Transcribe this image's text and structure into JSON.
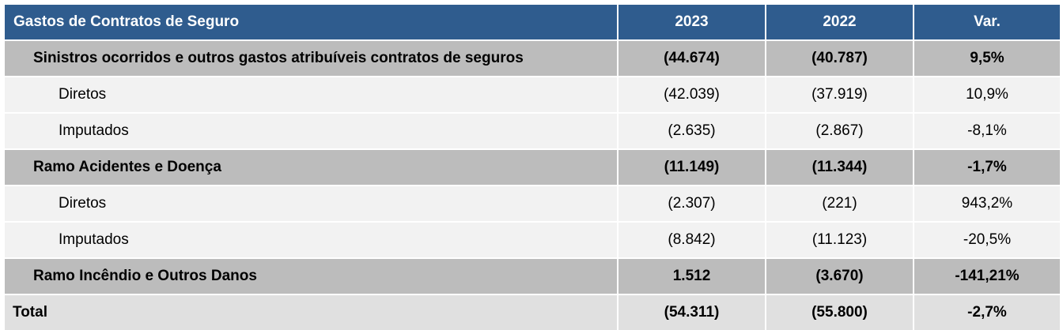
{
  "header": {
    "label": "Gastos de Contratos de Seguro",
    "y2023": "2023",
    "y2022": "2022",
    "var": "Var."
  },
  "rows": [
    {
      "type": "group",
      "label": "Sinistros ocorridos e outros gastos atribuíveis contratos de seguros",
      "y2023": "(44.674)",
      "y2022": "(40.787)",
      "var": "9,5%"
    },
    {
      "type": "sub",
      "label": "Diretos",
      "y2023": "(42.039)",
      "y2022": "(37.919)",
      "var": "10,9%"
    },
    {
      "type": "sub",
      "label": "Imputados",
      "y2023": "(2.635)",
      "y2022": "(2.867)",
      "var": "-8,1%"
    },
    {
      "type": "group",
      "label": "Ramo Acidentes e Doença",
      "y2023": "(11.149)",
      "y2022": "(11.344)",
      "var": "-1,7%"
    },
    {
      "type": "sub",
      "label": "Diretos",
      "y2023": "(2.307)",
      "y2022": "(221)",
      "var": "943,2%"
    },
    {
      "type": "sub",
      "label": "Imputados",
      "y2023": "(8.842)",
      "y2022": "(11.123)",
      "var": "-20,5%"
    },
    {
      "type": "group",
      "label": "Ramo Incêndio e Outros Danos",
      "y2023": "1.512",
      "y2022": "(3.670)",
      "var": "-141,21%"
    }
  ],
  "total": {
    "label": "Total",
    "y2023": "(54.311)",
    "y2022": "(55.800)",
    "var": "-2,7%"
  },
  "colors": {
    "header_bg": "#2f5c8e",
    "group_bg": "#bcbcbc",
    "sub_bg": "#f2f2f2",
    "total_bg": "#e0e0e0"
  }
}
